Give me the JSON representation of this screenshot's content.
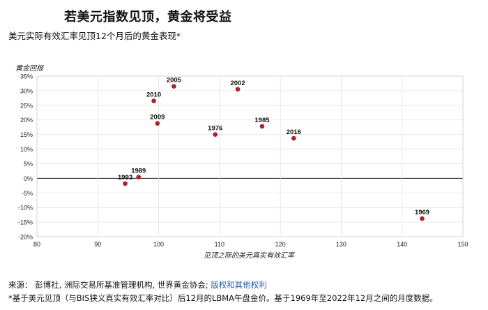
{
  "header": {
    "title": "若美元指数见顶，黄金将受益",
    "subtitle": "美元实际有效汇率见顶12个月后的黄金表现*"
  },
  "chart_data": {
    "type": "scatter",
    "ylabel": "黄金回报",
    "xlabel": "见顶之际的美元真实有效汇率",
    "xlim": [
      80,
      150
    ],
    "ylim": [
      -20,
      35
    ],
    "x_ticks": [
      "80",
      "90",
      "100",
      "110",
      "120",
      "130",
      "140",
      "150"
    ],
    "y_ticks": [
      "35%",
      "30%",
      "25%",
      "20%",
      "15%",
      "10%",
      "5%",
      "0%",
      "-5%",
      "-10%",
      "-15%",
      "-20%"
    ],
    "grid": true,
    "point_color": "#a8232b",
    "points": [
      {
        "label": "1993",
        "x": 94.5,
        "y": -1.8
      },
      {
        "label": "1989",
        "x": 96.7,
        "y": 0.4
      },
      {
        "label": "2010",
        "x": 99.2,
        "y": 26.5
      },
      {
        "label": "2009",
        "x": 99.8,
        "y": 18.8
      },
      {
        "label": "2005",
        "x": 102.5,
        "y": 31.5
      },
      {
        "label": "1976",
        "x": 109.3,
        "y": 15.0
      },
      {
        "label": "2002",
        "x": 113.0,
        "y": 30.5
      },
      {
        "label": "1985",
        "x": 117.0,
        "y": 17.8
      },
      {
        "label": "2016",
        "x": 122.2,
        "y": 13.7
      },
      {
        "label": "1969",
        "x": 143.3,
        "y": -13.8
      }
    ]
  },
  "footer": {
    "source_prefix": "来源：  彭博社, 洲际交易所基准管理机构, 世界黄金协会; ",
    "source_link": "版权和其他权利",
    "note": "*基于美元见顶（与BIS狭义真实有效汇率对比）后12月的LBMA午盘金价。基于1969年至2022年12月之间的月度数据。"
  }
}
